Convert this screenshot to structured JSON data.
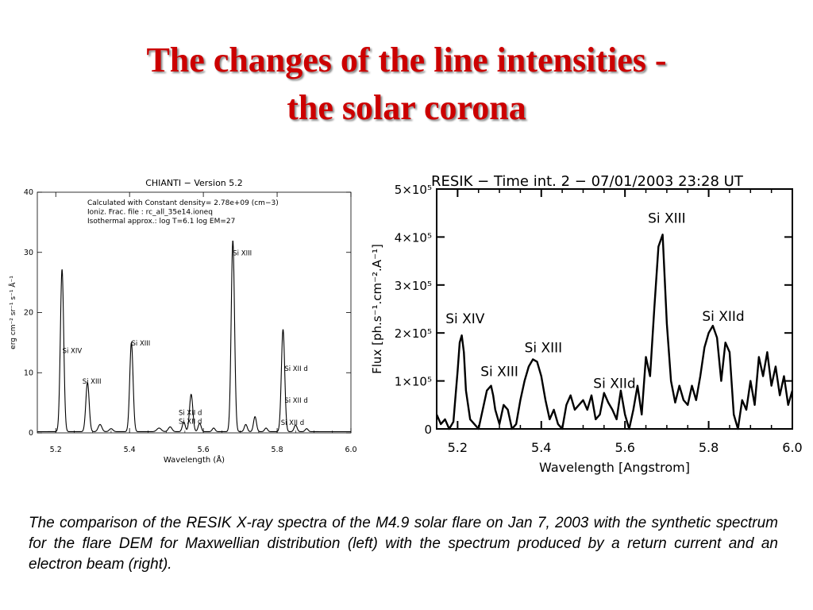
{
  "slide": {
    "title_line1": "The changes of the line intensities -",
    "title_line2": "the solar corona",
    "caption": "The comparison of the RESIK X-ray spectra of the M4.9 solar flare on Jan 7, 2003 with the synthetic spectrum for the flare DEM for Maxwellian distribution (left) with the spectrum produced by a return current and an electron beam (right).",
    "title_color": "#cc0000"
  },
  "chart_data": [
    {
      "type": "line",
      "title": "CHIANTI  −  Version 5.2",
      "info_lines": [
        "Calculated with Constant density=   2.78e+09 (cm−3)",
        "Ioniz. Frac. file : rc_all_35e14.ioneq",
        "Isothermal approx.: log T=6.1 log EM=27"
      ],
      "xlabel": "Wavelength (Å)",
      "ylabel": "erg cm⁻² sr⁻¹ s⁻¹ Å⁻¹",
      "xlim": [
        5.15,
        6.0
      ],
      "ylim": [
        0,
        40
      ],
      "x_ticks": [
        "5.2",
        "5.4",
        "5.6",
        "5.8",
        "6.0"
      ],
      "y_ticks": [
        "0",
        "10",
        "20",
        "30",
        "40"
      ],
      "grid": false,
      "baseline": 0.2,
      "peaks": [
        {
          "x": 5.217,
          "h": 27.0,
          "w": 0.0045
        },
        {
          "x": 5.286,
          "h": 8.2,
          "w": 0.0045
        },
        {
          "x": 5.32,
          "h": 1.2,
          "w": 0.005
        },
        {
          "x": 5.35,
          "h": 0.5,
          "w": 0.005
        },
        {
          "x": 5.405,
          "h": 14.8,
          "w": 0.0045
        },
        {
          "x": 5.48,
          "h": 0.6,
          "w": 0.006
        },
        {
          "x": 5.51,
          "h": 0.8,
          "w": 0.005
        },
        {
          "x": 5.547,
          "h": 1.6,
          "w": 0.004
        },
        {
          "x": 5.567,
          "h": 6.2,
          "w": 0.0045
        },
        {
          "x": 5.59,
          "h": 1.4,
          "w": 0.004
        },
        {
          "x": 5.628,
          "h": 0.6,
          "w": 0.004
        },
        {
          "x": 5.68,
          "h": 31.8,
          "w": 0.0045
        },
        {
          "x": 5.715,
          "h": 1.2,
          "w": 0.004
        },
        {
          "x": 5.74,
          "h": 2.5,
          "w": 0.004
        },
        {
          "x": 5.77,
          "h": 0.6,
          "w": 0.004
        },
        {
          "x": 5.816,
          "h": 17.0,
          "w": 0.0045
        },
        {
          "x": 5.85,
          "h": 1.1,
          "w": 0.004
        },
        {
          "x": 5.88,
          "h": 0.5,
          "w": 0.004
        }
      ],
      "annotations": [
        {
          "text": "Si XIV",
          "x": 5.218,
          "y": 13.3
        },
        {
          "text": "Si XIII",
          "x": 5.272,
          "y": 8.2
        },
        {
          "text": "Si XIII",
          "x": 5.405,
          "y": 14.5
        },
        {
          "text": "Si XII d",
          "x": 5.533,
          "y": 3.0
        },
        {
          "text": "Si XII d",
          "x": 5.533,
          "y": 1.5
        },
        {
          "text": "Si XIII",
          "x": 5.68,
          "y": 29.5
        },
        {
          "text": "Si XII d",
          "x": 5.82,
          "y": 10.3
        },
        {
          "text": "Si XII d",
          "x": 5.82,
          "y": 5.0
        },
        {
          "text": "Si XII d",
          "x": 5.81,
          "y": 1.3
        }
      ]
    },
    {
      "type": "line",
      "title": "RESIK  −  Time  int.  2  −  07/01/2003  23:28  UT",
      "xlabel": "Wavelength   [Angstrom]",
      "ylabel": "Flux   [ph.s⁻¹.cm⁻².A⁻¹]",
      "xlim": [
        5.15,
        6.0
      ],
      "ylim": [
        0,
        500000
      ],
      "x_ticks": [
        "5.2",
        "5.4",
        "5.6",
        "5.8",
        "6.0"
      ],
      "y_ticks": [
        "0",
        "1×10⁵",
        "2×10⁵",
        "3×10⁵",
        "4×10⁵",
        "5×10⁵"
      ],
      "grid": false,
      "series": [
        {
          "x": [
            5.15,
            5.16,
            5.17,
            5.18,
            5.19,
            5.2,
            5.205,
            5.21,
            5.215,
            5.22,
            5.23,
            5.24,
            5.25,
            5.26,
            5.27,
            5.28,
            5.285,
            5.29,
            5.3,
            5.31,
            5.32,
            5.33,
            5.34,
            5.35,
            5.36,
            5.37,
            5.38,
            5.39,
            5.4,
            5.41,
            5.42,
            5.43,
            5.44,
            5.45,
            5.46,
            5.47,
            5.48,
            5.49,
            5.5,
            5.51,
            5.52,
            5.53,
            5.54,
            5.55,
            5.56,
            5.57,
            5.58,
            5.59,
            5.6,
            5.61,
            5.62,
            5.63,
            5.64,
            5.65,
            5.66,
            5.67,
            5.68,
            5.69,
            5.7,
            5.71,
            5.72,
            5.73,
            5.74,
            5.75,
            5.76,
            5.77,
            5.78,
            5.79,
            5.8,
            5.81,
            5.82,
            5.83,
            5.84,
            5.85,
            5.86,
            5.87,
            5.88,
            5.89,
            5.9,
            5.91,
            5.92,
            5.93,
            5.94,
            5.95,
            5.96,
            5.97,
            5.98,
            5.99,
            6.0
          ],
          "y": [
            30000,
            10000,
            20000,
            0,
            15000,
            120000,
            180000,
            195000,
            160000,
            80000,
            20000,
            10000,
            0,
            40000,
            80000,
            90000,
            70000,
            40000,
            10000,
            50000,
            40000,
            0,
            10000,
            60000,
            100000,
            130000,
            145000,
            140000,
            110000,
            60000,
            20000,
            40000,
            10000,
            0,
            50000,
            70000,
            40000,
            50000,
            60000,
            40000,
            70000,
            20000,
            30000,
            75000,
            55000,
            40000,
            20000,
            80000,
            30000,
            0,
            40000,
            90000,
            30000,
            150000,
            110000,
            250000,
            380000,
            405000,
            220000,
            100000,
            55000,
            90000,
            60000,
            50000,
            90000,
            60000,
            110000,
            170000,
            200000,
            215000,
            190000,
            100000,
            180000,
            160000,
            30000,
            0,
            60000,
            40000,
            100000,
            50000,
            150000,
            110000,
            160000,
            90000,
            130000,
            70000,
            110000,
            50000,
            80000
          ]
        }
      ],
      "annotations": [
        {
          "text": "Si  XIV",
          "x": 5.218,
          "y": 220000
        },
        {
          "text": "Si  XIII",
          "x": 5.3,
          "y": 110000
        },
        {
          "text": "Si  XIII",
          "x": 5.405,
          "y": 160000
        },
        {
          "text": "Si  XIId",
          "x": 5.575,
          "y": 85000
        },
        {
          "text": "Si  XIII",
          "x": 5.7,
          "y": 430000
        },
        {
          "text": "Si  XIId",
          "x": 5.835,
          "y": 225000
        }
      ]
    }
  ]
}
